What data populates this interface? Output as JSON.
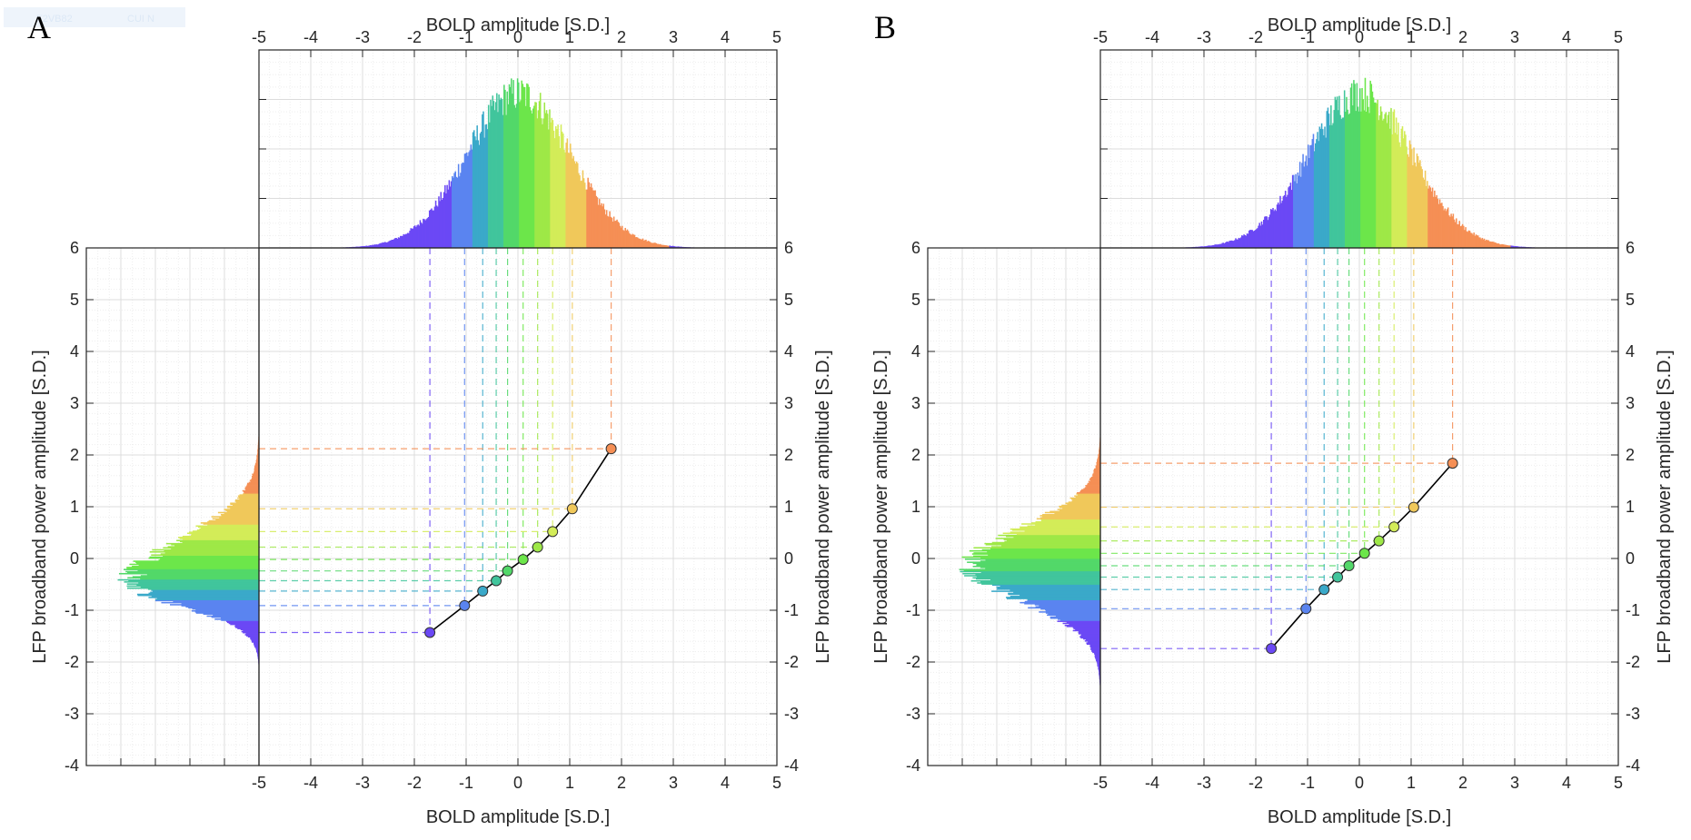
{
  "figure": {
    "panel_letters": [
      "A",
      "B"
    ],
    "faint_label_left": "F2VB82",
    "faint_label_right": "CUI N"
  },
  "style": {
    "bin_colors": [
      "#6b48f5",
      "#5a84f0",
      "#3aa9c9",
      "#41c59c",
      "#52d869",
      "#6ce64a",
      "#9ee847",
      "#d3ec58",
      "#f0c85a",
      "#f58f55"
    ],
    "curve_color": "#000000",
    "grid_color": "#dcdcdc",
    "minor_grid_color": "#eeeeee",
    "axis_color": "#262626"
  },
  "chart_data": [
    {
      "panel": "A",
      "type": "scatter",
      "xlabel_top": "BOLD amplitude [S.D.]",
      "xlabel_bottom": "BOLD amplitude [S.D.]",
      "ylabel_left": "LFP broadband power amplitude [S.D.]",
      "ylabel_right": "LFP broadband power amplitude [S.D.]",
      "xlim": [
        -5,
        5
      ],
      "ylim": [
        -4,
        6
      ],
      "xticks": [
        -5,
        -4,
        -3,
        -2,
        -1,
        0,
        1,
        2,
        3,
        4,
        5
      ],
      "yticks": [
        -4,
        -3,
        -2,
        -1,
        0,
        1,
        2,
        3,
        4,
        5,
        6
      ],
      "grid": true,
      "curve": {
        "x": [
          -1.7,
          -1.03,
          -0.68,
          -0.42,
          -0.2,
          0.1,
          0.38,
          0.67,
          1.05,
          1.8
        ],
        "y": [
          -1.43,
          -0.91,
          -0.63,
          -0.43,
          -0.24,
          -0.02,
          0.22,
          0.52,
          0.96,
          2.12
        ]
      },
      "bold_bin_edges": [
        -2.0,
        -1.3,
        -0.9,
        -0.6,
        -0.3,
        0.0,
        0.3,
        0.6,
        0.9,
        1.3,
        2.9
      ],
      "lfp_bin_edges": [
        -2.5,
        -1.2,
        -0.8,
        -0.6,
        -0.4,
        -0.2,
        0.05,
        0.35,
        0.65,
        1.25,
        3.3
      ],
      "bold_hist": {
        "mu": 0.0,
        "sigma": 1.0,
        "peak_height": 0.78
      },
      "lfp_hist": {
        "mode": -0.45,
        "sigma_left": 0.48,
        "sigma_right": 0.85,
        "peak_width": 0.74
      }
    },
    {
      "panel": "B",
      "type": "scatter",
      "xlabel_top": "BOLD amplitude [S.D.]",
      "xlabel_bottom": "BOLD amplitude [S.D.]",
      "ylabel_left": "LFP broadband power amplitude [S.D.]",
      "ylabel_right": "LFP broadband power amplitude [S.D.]",
      "xlim": [
        -5,
        5
      ],
      "ylim": [
        -4,
        6
      ],
      "xticks": [
        -5,
        -4,
        -3,
        -2,
        -1,
        0,
        1,
        2,
        3,
        4,
        5
      ],
      "yticks": [
        -4,
        -3,
        -2,
        -1,
        0,
        1,
        2,
        3,
        4,
        5,
        6
      ],
      "grid": true,
      "curve": {
        "x": [
          -1.7,
          -1.03,
          -0.68,
          -0.42,
          -0.2,
          0.1,
          0.38,
          0.67,
          1.05,
          1.8
        ],
        "y": [
          -1.74,
          -0.97,
          -0.6,
          -0.36,
          -0.14,
          0.1,
          0.34,
          0.61,
          0.99,
          1.84
        ]
      },
      "bold_bin_edges": [
        -2.0,
        -1.3,
        -0.9,
        -0.6,
        -0.3,
        0.0,
        0.3,
        0.6,
        0.9,
        1.3,
        2.9
      ],
      "lfp_bin_edges": [
        -2.9,
        -1.2,
        -0.8,
        -0.5,
        -0.25,
        0.0,
        0.2,
        0.45,
        0.75,
        1.25,
        3.0
      ],
      "bold_hist": {
        "mu": 0.0,
        "sigma": 1.0,
        "peak_height": 0.78
      },
      "lfp_hist": {
        "mode": -0.15,
        "sigma_left": 0.7,
        "sigma_right": 0.75,
        "peak_width": 0.74
      }
    }
  ]
}
